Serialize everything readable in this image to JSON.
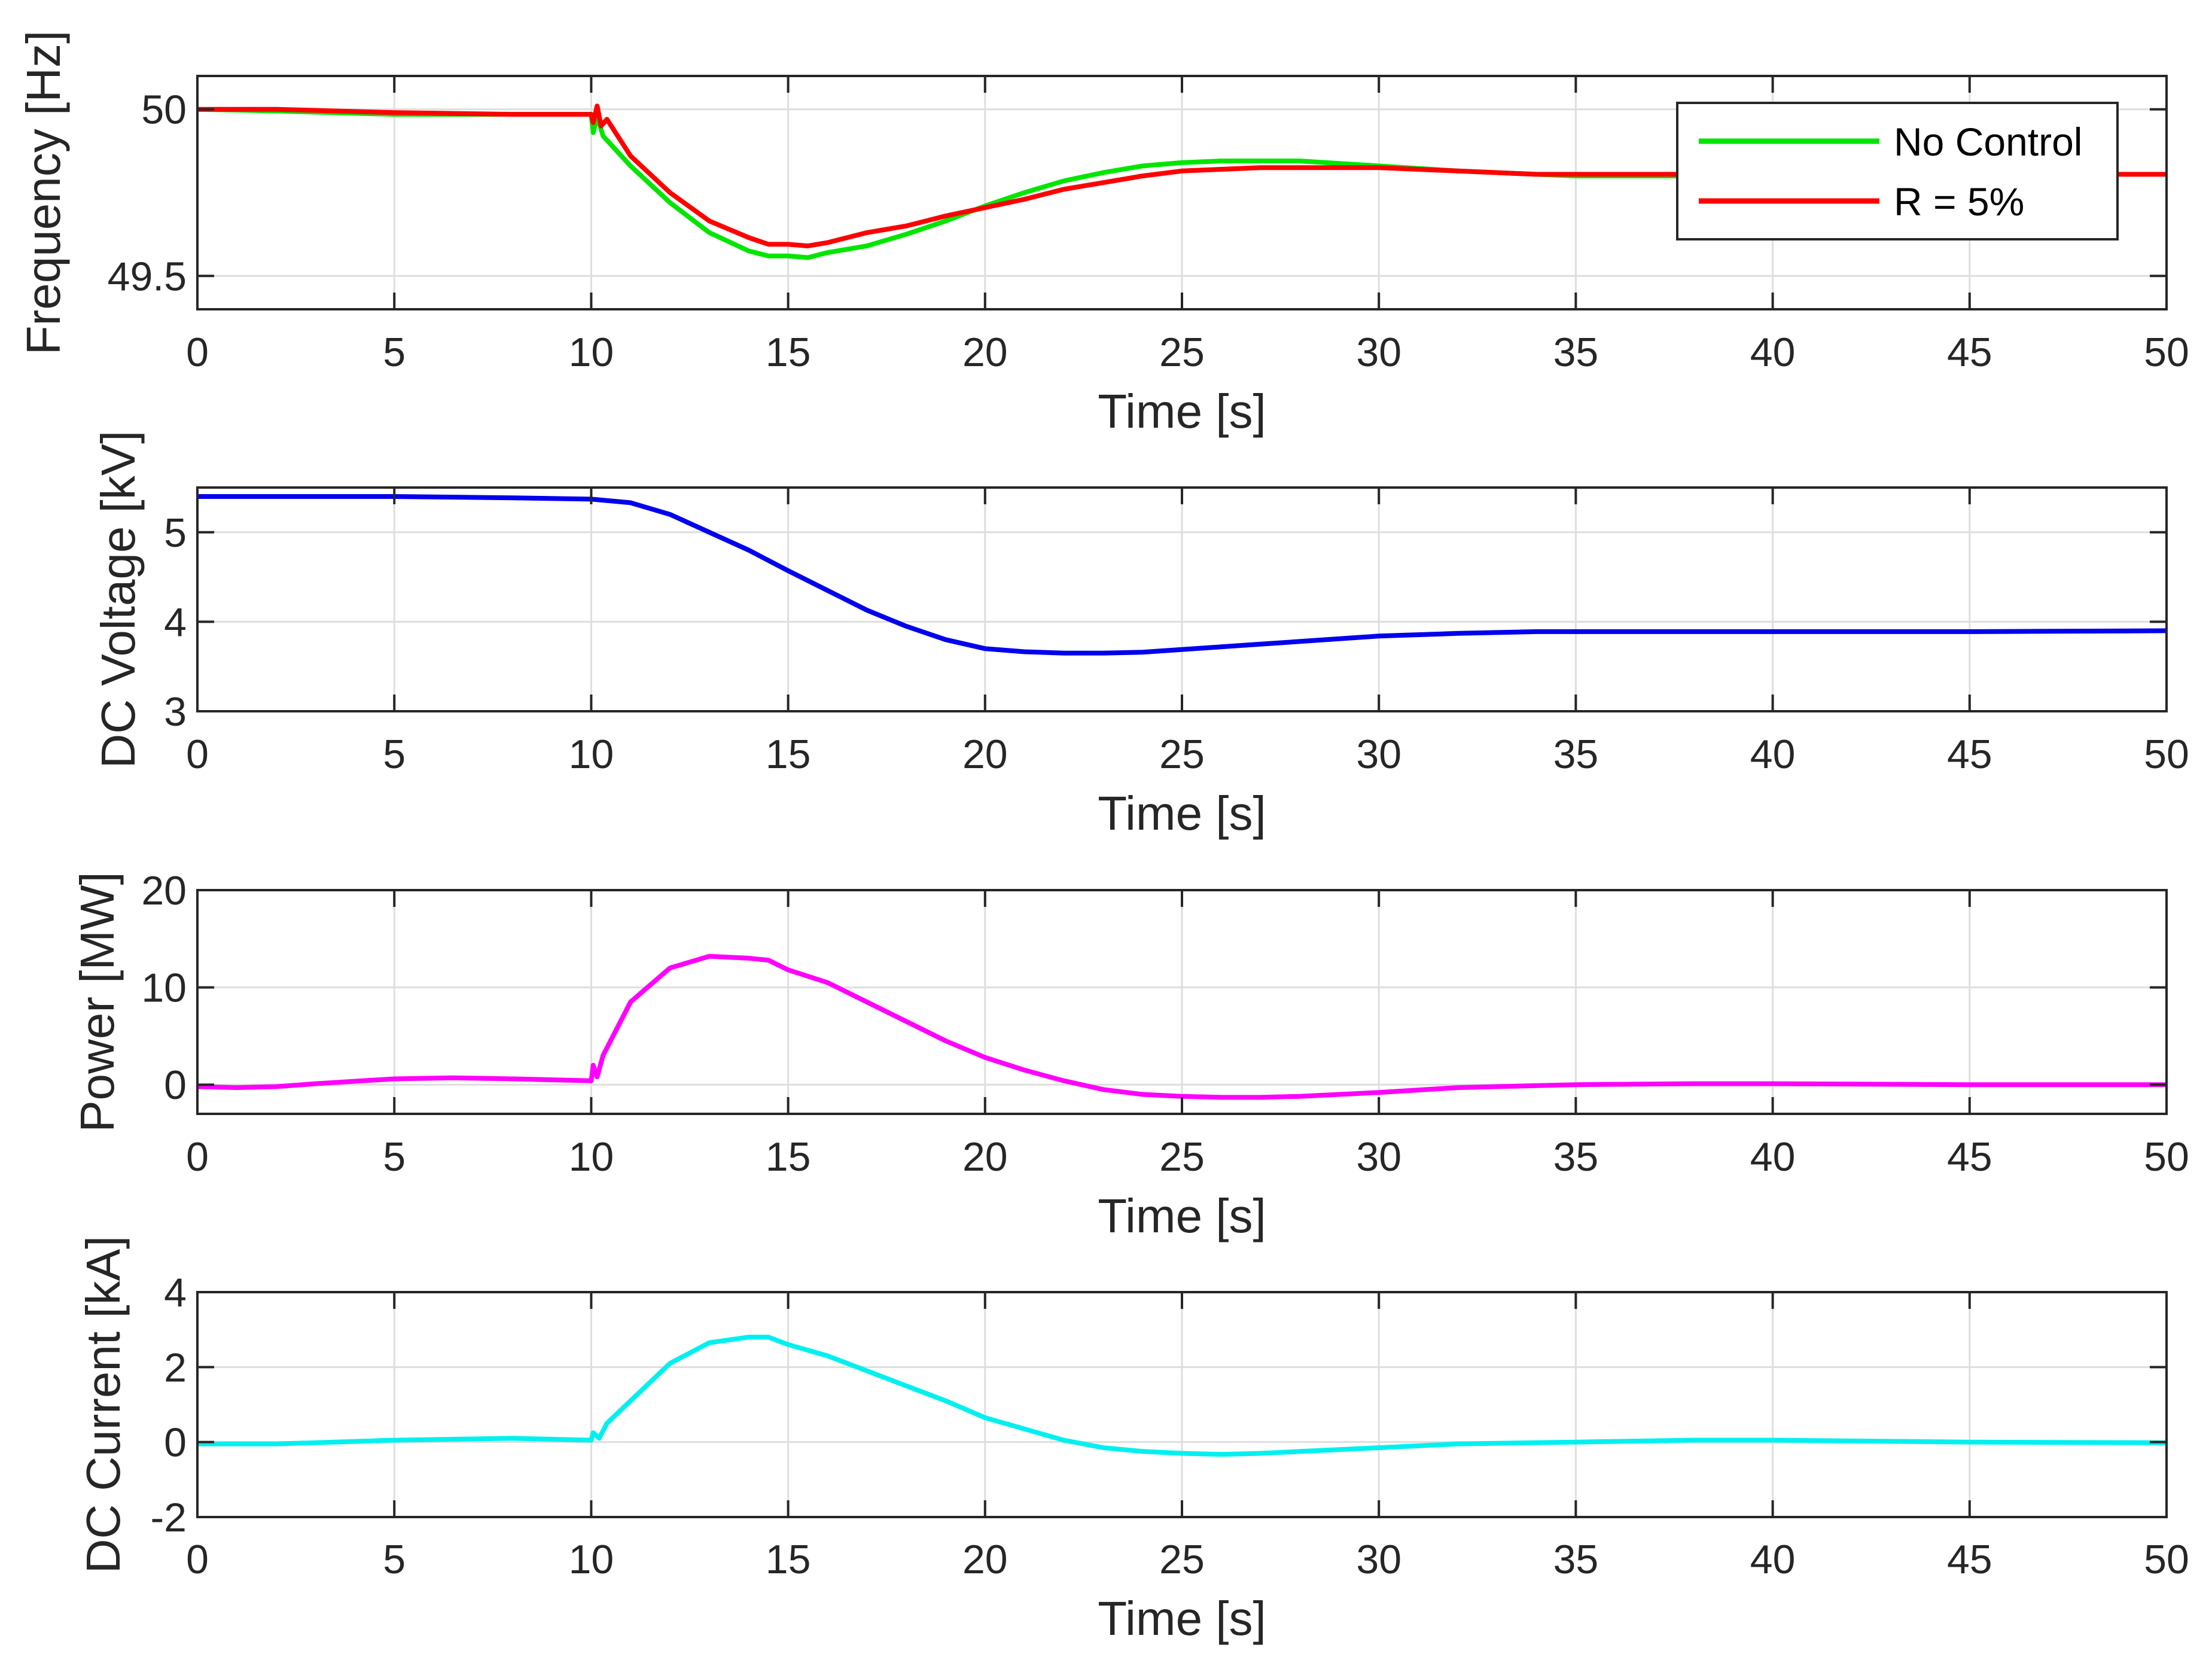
{
  "chart_data": [
    {
      "type": "line",
      "title": "",
      "xlabel": "Time [s]",
      "ylabel": "Frequency [Hz]",
      "xlim": [
        0,
        50
      ],
      "ylim": [
        49.4,
        50.1
      ],
      "xticks": [
        0,
        5,
        10,
        15,
        20,
        25,
        30,
        35,
        40,
        45,
        50
      ],
      "yticks": [
        49.5,
        50
      ],
      "grid": true,
      "legend": {
        "position": "top-right",
        "entries": [
          "No Control",
          "R = 5%"
        ]
      },
      "series": [
        {
          "name": "No Control",
          "color": "#00e600",
          "x": [
            0,
            2,
            5,
            8,
            10,
            10.05,
            10.15,
            10.3,
            11,
            12,
            13,
            14,
            14.5,
            15,
            15.5,
            16,
            17,
            18,
            19,
            20,
            21,
            22,
            23,
            24,
            25,
            26,
            27,
            28,
            30,
            32,
            34,
            35,
            36,
            38
          ],
          "y": [
            50.0,
            49.995,
            49.985,
            49.985,
            49.985,
            49.93,
            49.98,
            49.92,
            49.83,
            49.72,
            49.63,
            49.575,
            49.56,
            49.56,
            49.555,
            49.57,
            49.59,
            49.625,
            49.665,
            49.71,
            49.75,
            49.785,
            49.81,
            49.83,
            49.84,
            49.845,
            49.845,
            49.845,
            49.83,
            49.815,
            49.805,
            49.8,
            49.8,
            49.8
          ]
        },
        {
          "name": "R = 5%",
          "color": "#ff0000",
          "x": [
            0,
            2,
            5,
            8,
            10,
            10.05,
            10.15,
            10.25,
            10.4,
            11,
            12,
            13,
            14,
            14.5,
            15,
            15.5,
            16,
            17,
            18,
            19,
            20,
            21,
            22,
            23,
            24,
            25,
            26,
            27,
            28,
            30,
            32,
            34,
            35,
            36,
            38,
            40,
            45,
            50
          ],
          "y": [
            50.0,
            50.0,
            49.99,
            49.985,
            49.985,
            49.96,
            50.01,
            49.95,
            49.97,
            49.86,
            49.75,
            49.665,
            49.615,
            49.595,
            49.595,
            49.59,
            49.6,
            49.63,
            49.65,
            49.68,
            49.705,
            49.73,
            49.76,
            49.78,
            49.8,
            49.815,
            49.82,
            49.825,
            49.825,
            49.825,
            49.815,
            49.805,
            49.805,
            49.805,
            49.805,
            49.805,
            49.805,
            49.805
          ]
        }
      ]
    },
    {
      "type": "line",
      "title": "",
      "xlabel": "Time [s]",
      "ylabel": "DC Voltage [kV]",
      "xlim": [
        0,
        50
      ],
      "ylim": [
        3,
        5.5
      ],
      "xticks": [
        0,
        5,
        10,
        15,
        20,
        25,
        30,
        35,
        40,
        45,
        50
      ],
      "yticks": [
        3,
        4,
        5
      ],
      "grid": true,
      "series": [
        {
          "name": "DC Voltage",
          "color": "#0000ee",
          "x": [
            0,
            5,
            8,
            10,
            11,
            12,
            13,
            14,
            15,
            16,
            17,
            18,
            19,
            20,
            21,
            22,
            23,
            24,
            25,
            26,
            27,
            28,
            30,
            32,
            34,
            35,
            40,
            45,
            50
          ],
          "y": [
            5.4,
            5.4,
            5.385,
            5.37,
            5.33,
            5.2,
            5.0,
            4.8,
            4.57,
            4.35,
            4.13,
            3.95,
            3.8,
            3.7,
            3.665,
            3.65,
            3.65,
            3.66,
            3.69,
            3.72,
            3.75,
            3.78,
            3.84,
            3.87,
            3.89,
            3.89,
            3.89,
            3.89,
            3.9
          ]
        }
      ]
    },
    {
      "type": "line",
      "title": "",
      "xlabel": "Time [s]",
      "ylabel": "Power [MW]",
      "xlim": [
        0,
        50
      ],
      "ylim": [
        -3,
        20
      ],
      "xticks": [
        0,
        5,
        10,
        15,
        20,
        25,
        30,
        35,
        40,
        45,
        50
      ],
      "yticks": [
        0,
        10,
        20
      ],
      "grid": true,
      "series": [
        {
          "name": "Power",
          "color": "#ff00ff",
          "x": [
            0,
            1,
            2,
            3,
            5,
            6.5,
            8,
            10,
            10.05,
            10.15,
            10.3,
            11,
            12,
            13,
            14,
            14.5,
            15,
            16,
            17,
            18,
            19,
            20,
            21,
            22,
            23,
            24,
            25,
            26,
            27,
            28,
            30,
            32,
            35,
            38,
            40,
            45,
            50
          ],
          "y": [
            -0.2,
            -0.3,
            -0.2,
            0.1,
            0.6,
            0.7,
            0.6,
            0.4,
            2.0,
            0.8,
            3.0,
            8.5,
            12.0,
            13.2,
            13.0,
            12.8,
            11.8,
            10.5,
            8.5,
            6.5,
            4.5,
            2.8,
            1.5,
            0.4,
            -0.5,
            -1.0,
            -1.2,
            -1.3,
            -1.3,
            -1.2,
            -0.8,
            -0.3,
            0.0,
            0.1,
            0.1,
            0.0,
            0.0
          ]
        }
      ]
    },
    {
      "type": "line",
      "title": "",
      "xlabel": "Time [s]",
      "ylabel": "DC Current [kA]",
      "xlim": [
        0,
        50
      ],
      "ylim": [
        -2,
        4
      ],
      "xticks": [
        0,
        5,
        10,
        15,
        20,
        25,
        30,
        35,
        40,
        45,
        50
      ],
      "yticks": [
        -2,
        0,
        2,
        4
      ],
      "grid": true,
      "series": [
        {
          "name": "DC Current",
          "color": "#00f0f0",
          "x": [
            0,
            2,
            5,
            8,
            10,
            10.05,
            10.2,
            10.4,
            11,
            12,
            13,
            14,
            14.5,
            15,
            16,
            17,
            18,
            19,
            20,
            21,
            22,
            23,
            24,
            25,
            26,
            27,
            28,
            30,
            32,
            35,
            38,
            40,
            45,
            50
          ],
          "y": [
            -0.05,
            -0.05,
            0.05,
            0.1,
            0.05,
            0.25,
            0.1,
            0.5,
            1.1,
            2.1,
            2.65,
            2.8,
            2.8,
            2.6,
            2.3,
            1.9,
            1.5,
            1.1,
            0.65,
            0.35,
            0.05,
            -0.15,
            -0.25,
            -0.3,
            -0.33,
            -0.3,
            -0.25,
            -0.15,
            -0.05,
            0.0,
            0.05,
            0.05,
            0.0,
            -0.02
          ]
        }
      ]
    }
  ]
}
